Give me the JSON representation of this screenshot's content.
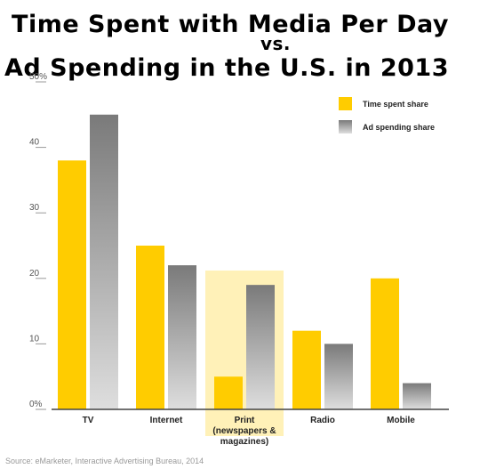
{
  "title": {
    "line1": "Time Spent with Media Per Day",
    "line2": "vs.",
    "line3": "Ad Spending in the U.S. in 2013"
  },
  "source": "Source: eMarketer, Interactive Advertising Bureau, 2014",
  "colors": {
    "time_spent": "#FFCC00",
    "ad_spending_top": "#7a7a7a",
    "ad_spending_bottom": "#dedede",
    "highlight": "#FFF1B8",
    "axis": "#444444",
    "grid_tick": "#999999"
  },
  "chart_data": {
    "type": "bar",
    "categories": [
      "TV",
      "Internet",
      "Print\n(newspapers &\nmagazines)",
      "Radio",
      "Mobile"
    ],
    "highlighted_category": "Print\n(newspapers &\nmagazines)",
    "series": [
      {
        "name": "Time spent share",
        "values": [
          38,
          25,
          5,
          12,
          20
        ]
      },
      {
        "name": "Ad spending share",
        "values": [
          45,
          22,
          19,
          10,
          4
        ]
      }
    ],
    "y_ticks": [
      "0%",
      "10",
      "20",
      "30",
      "40",
      "50%"
    ],
    "ylim": [
      0,
      50
    ],
    "legend_position": "top-right",
    "grid": false
  }
}
